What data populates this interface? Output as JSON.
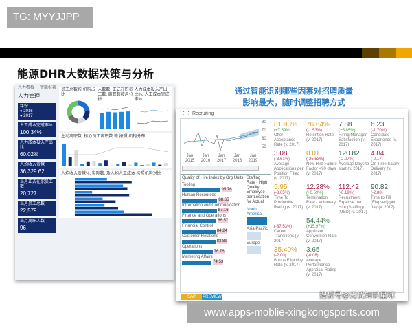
{
  "badge_tg": "TG: MYYJJPP",
  "slide_title": "能源DHR大数据决策与分析",
  "callout": [
    "通过智能识别哪些因素对招聘质量",
    "影响最大，随时调整招聘方式"
  ],
  "watermark": "搜狐号@无忧知识星球",
  "url_badge": "www.apps-moblie-xingkongsports.com",
  "colors": {
    "navy": "#132b6b",
    "blue": "#1e88e5",
    "accent_dark": "#5c4000",
    "accent_mid": "#a87800",
    "accent_light": "#f0a800",
    "kpi_yellow": "#e0a020",
    "kpi_red": "#a02048",
    "kpi_green": "#3f7f4f",
    "kpi_teal": "#3a5a5a"
  },
  "left_dashboard": {
    "tabs": [
      "人力看板",
      "智能报表"
    ],
    "section_title": "人力管理",
    "filter": {
      "label": "年份",
      "options": [
        "2016",
        "2017"
      ]
    },
    "cards": [
      {
        "label": "人工成本完成率%",
        "value": "100.34%"
      },
      {
        "label": "人力成本投入产出比",
        "value": "60.02%"
      },
      {
        "label": "人均收入贡献",
        "value": "36,329.62"
      },
      {
        "label": "当月正式在职员工数",
        "value": "20,727"
      },
      {
        "label": "当月员工总数",
        "value": "22,579"
      },
      {
        "label": "当月离职人数",
        "value": "96"
      }
    ],
    "panel_titles": [
      "员工总数按 机构占比",
      "人数数, 正式在职员工数, 离职数按月分析",
      "人力成本投入产出比%, 人工成本完成率%",
      "主动离职数, 核心员工离职数 等 按照 机构分布",
      "人均收入贡献%, 实际数, 及人均人工成本 按照机构对比"
    ],
    "donut": [
      22,
      16,
      12,
      18,
      32
    ],
    "monthly_bars": [
      34,
      36,
      35,
      36,
      37
    ],
    "dist_bars": [
      80,
      34,
      60,
      10,
      18,
      20,
      12,
      22,
      4,
      8,
      16,
      6,
      14,
      4,
      10,
      14,
      6,
      12
    ],
    "hbars": [
      [
        52,
        92
      ],
      [
        78,
        85
      ],
      [
        28,
        88
      ],
      [
        45,
        66
      ],
      [
        48,
        70
      ],
      [
        80,
        125
      ]
    ]
  },
  "recruiting": {
    "title": "Recruiting",
    "x_ticks": [
      "Jan 2015",
      "Jan 2016",
      "Jan 2017",
      "Jan 2018",
      "Jan 2019"
    ],
    "y_ticks": [
      "80",
      "70",
      "60",
      "50"
    ],
    "kpis": [
      {
        "value": "81.93%",
        "delta": "(+7.59%)",
        "name": "Offer Acceptance Rate (v. 2017)",
        "color": "kpi_yellow"
      },
      {
        "value": "76.64%",
        "delta": "(-1.53%)",
        "name": "Retention Rate (v. 2017)",
        "color": "kpi_yellow"
      },
      {
        "value": "7.88",
        "delta": "(+5.85%)",
        "name": "Hiring Manager Satisfaction (v. 2017)",
        "color": "kpi_teal"
      },
      {
        "value": "6.23",
        "delta": "(-1.70%)",
        "name": "Candidate Experience (v. 2017)",
        "color": "kpi_teal"
      },
      {
        "value": "3.08",
        "delta": "(-3.61%)",
        "name": "Average Applications per Position Filled (v. 2017)",
        "color": "kpi_red"
      },
      {
        "value": "0.01",
        "delta": "(-25.53%)",
        "name": "New Hire Failure Factor <90 days (v. 2017)",
        "color": "kpi_yellow"
      },
      {
        "value": "120.82",
        "delta": "(-2.07%)",
        "name": "Average Days to start (v. 2017)",
        "color": "kpi_teal"
      },
      {
        "value": "4.84",
        "delta": "(-0.17)",
        "name": "On Time Salary Delivery (v. 2017)",
        "color": "kpi_red"
      },
      {
        "value": "5.95",
        "delta": "(-3.05%)",
        "name": "Time To Productive Rating (v. 2017)",
        "color": "kpi_yellow"
      },
      {
        "value": "12.28%",
        "delta": "(+0.59%)",
        "name": "Termination Rate - Voluntary (v. 2017)",
        "color": "kpi_red"
      },
      {
        "value": "112.42",
        "delta": "(-0.19%)",
        "name": "Recruitment Expense per Hire (Staffing) (USD) (v. 2017)",
        "color": "kpi_red"
      },
      {
        "value": "90.82",
        "delta": "(-2.88)",
        "name": "Time to Fill (Elapsed) per day (v. 2017)",
        "color": "kpi_teal"
      },
      {
        "value": "",
        "delta": "(-87.53%)",
        "name": "Career Transitions (v. 2017)",
        "color": "kpi_red"
      },
      {
        "value": "54.44%",
        "delta": "(+15.97%)",
        "name": "Applicant Conversion Rate (v. 2017)",
        "color": "kpi_green"
      },
      {
        "value": "35.40%",
        "delta": "(-2.00)",
        "name": "Bonus Eligibility Rate (v. 2017)",
        "color": "kpi_yellow"
      },
      {
        "value": "3.65",
        "delta": "(-0.08)",
        "name": "Average Performance Appraisal Rating (v. 2017)",
        "color": "kpi_green"
      }
    ],
    "quality_title": "Quality of Hire Index by Org Units",
    "quality": [
      {
        "label": "Tooling",
        "value": "95.76"
      },
      {
        "label": "Human Resources",
        "value": "88.65"
      },
      {
        "label": "Information and Communication",
        "value": "87.16"
      },
      {
        "label": "Finance and Operations",
        "value": "86.57"
      },
      {
        "label": "Financial Control",
        "value": "84.24"
      },
      {
        "label": "Customer Relations",
        "value": "83.89"
      },
      {
        "label": "Operations",
        "value": "76.76"
      },
      {
        "label": "Marketing Affairs",
        "value": "74.53"
      }
    ],
    "staffing_title": "Staffing Rate - High Quality Employee per Location for Actual",
    "staffing": [
      {
        "label": "North America",
        "value": 100
      },
      {
        "label": "Asia Pacific",
        "value": 70
      },
      {
        "label": "Europe",
        "value": 70
      }
    ],
    "footer_badge": [
      "SAP",
      "PREVIEW"
    ]
  }
}
